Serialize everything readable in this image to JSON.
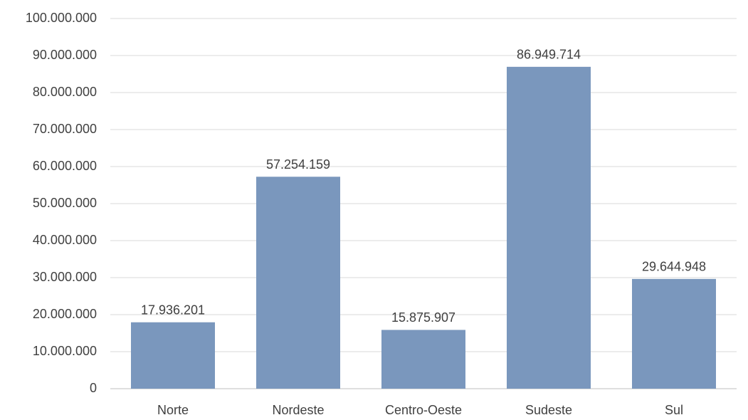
{
  "chart_data": {
    "type": "bar",
    "categories": [
      "Norte",
      "Nordeste",
      "Centro-Oeste",
      "Sudeste",
      "Sul"
    ],
    "values": [
      17936201,
      57254159,
      15875907,
      86949714,
      29644948
    ],
    "value_labels": [
      "17.936.201",
      "57.254.159",
      "15.875.907",
      "86.949.714",
      "29.644.948"
    ],
    "color": "#7a97bd",
    "ylim": [
      0,
      100000000
    ],
    "yticks": [
      0,
      {
        "value": 10000000,
        "label": "10.000.000"
      },
      {
        "value": 20000000,
        "label": "20.000.000"
      },
      {
        "value": 30000000,
        "label": "30.000.000"
      },
      {
        "value": 40000000,
        "label": "40.000.000"
      },
      {
        "value": 50000000,
        "label": "50.000.000"
      },
      {
        "value": 60000000,
        "label": "60.000.000"
      },
      {
        "value": 70000000,
        "label": "70.000.000"
      },
      {
        "value": 80000000,
        "label": "80.000.000"
      },
      {
        "value": 90000000,
        "label": "90.000.000"
      },
      {
        "value": 100000000,
        "label": "100.000.000"
      }
    ],
    "grid": true
  }
}
